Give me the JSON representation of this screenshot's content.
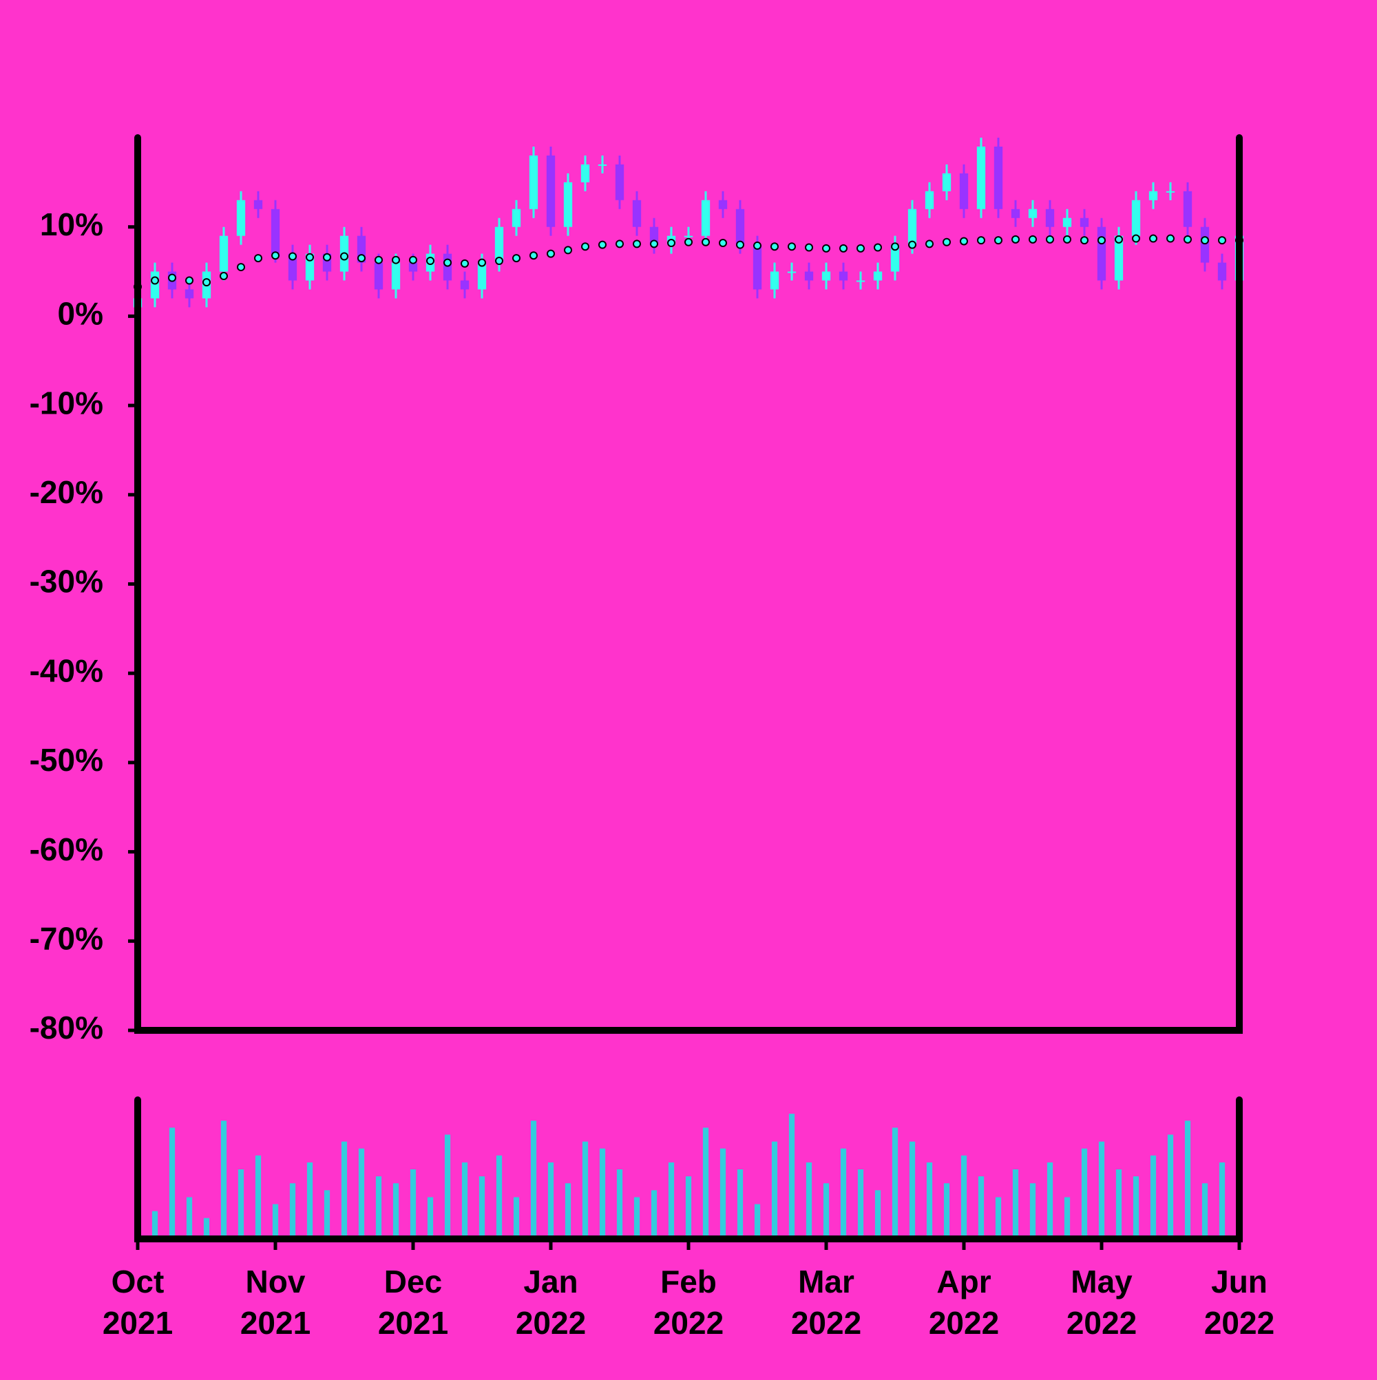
{
  "chart_data": {
    "type": "candlestick",
    "x": [
      0,
      0.125,
      0.25,
      0.375,
      0.5,
      0.625,
      0.75,
      0.875,
      1,
      1.125,
      1.25,
      1.375,
      1.5,
      1.625,
      1.75,
      1.875,
      2,
      2.125,
      2.25,
      2.375,
      2.5,
      2.625,
      2.75,
      2.875,
      3,
      3.125,
      3.25,
      3.375,
      3.5,
      3.625,
      3.75,
      3.875,
      4,
      4.125,
      4.25,
      4.375,
      4.5,
      4.625,
      4.75,
      4.875,
      5,
      5.125,
      5.25,
      5.375,
      5.5,
      5.625,
      5.75,
      5.875,
      6,
      6.125,
      6.25,
      6.375,
      6.5,
      6.625,
      6.75,
      6.875,
      7,
      7.125,
      7.25,
      7.375,
      7.5,
      7.625,
      7.75,
      7.875,
      8
    ],
    "open": [
      1,
      2,
      5,
      3,
      2,
      5,
      9,
      13,
      12,
      7,
      4,
      7,
      5,
      9,
      6,
      3,
      6,
      5,
      7,
      4,
      3,
      6,
      10,
      12,
      18,
      10,
      15,
      17,
      17,
      13,
      10,
      8,
      9,
      9,
      13,
      12,
      8,
      3,
      5,
      5,
      4,
      5,
      4,
      4,
      5,
      8,
      12,
      14,
      16,
      12,
      19,
      12,
      11,
      12,
      10,
      11,
      10,
      4,
      9,
      13,
      14,
      14,
      10,
      6,
      4
    ],
    "high": [
      3,
      6,
      6,
      4,
      6,
      10,
      14,
      14,
      13,
      8,
      8,
      8,
      10,
      10,
      7,
      7,
      7,
      8,
      8,
      5,
      7,
      11,
      13,
      19,
      19,
      16,
      18,
      18,
      18,
      14,
      11,
      10,
      10,
      14,
      14,
      13,
      9,
      6,
      6,
      6,
      6,
      6,
      5,
      6,
      9,
      13,
      15,
      17,
      17,
      20,
      20,
      13,
      13,
      13,
      12,
      12,
      11,
      10,
      14,
      15,
      15,
      15,
      11,
      7,
      10
    ],
    "low": [
      0,
      1,
      2,
      1,
      1,
      4,
      8,
      11,
      6,
      3,
      3,
      4,
      4,
      5,
      2,
      2,
      4,
      4,
      3,
      2,
      2,
      5,
      9,
      11,
      9,
      9,
      14,
      16,
      12,
      9,
      7,
      7,
      8,
      8,
      11,
      7,
      2,
      2,
      4,
      3,
      3,
      3,
      3,
      3,
      4,
      7,
      11,
      13,
      11,
      11,
      11,
      10,
      10,
      9,
      9,
      9,
      3,
      3,
      8,
      12,
      13,
      9,
      5,
      3,
      3
    ],
    "close": [
      2,
      5,
      3,
      2,
      5,
      9,
      13,
      12,
      7,
      4,
      7,
      5,
      9,
      6,
      3,
      6,
      5,
      7,
      4,
      3,
      6,
      10,
      12,
      18,
      10,
      15,
      17,
      17,
      13,
      10,
      8,
      9,
      9,
      13,
      12,
      8,
      3,
      5,
      5,
      4,
      5,
      4,
      4,
      5,
      8,
      12,
      14,
      16,
      12,
      19,
      12,
      11,
      12,
      10,
      11,
      10,
      4,
      9,
      13,
      14,
      14,
      10,
      6,
      4,
      9
    ],
    "up_color": "#33ffee",
    "down_color": "#9933ff",
    "moving_average": {
      "color": "#33ffee",
      "values": [
        3.3,
        4.0,
        4.3,
        4.0,
        3.8,
        4.5,
        5.5,
        6.5,
        6.8,
        6.7,
        6.6,
        6.6,
        6.7,
        6.5,
        6.3,
        6.3,
        6.3,
        6.2,
        6.0,
        5.9,
        6.0,
        6.2,
        6.5,
        6.8,
        7.0,
        7.4,
        7.8,
        8.0,
        8.1,
        8.1,
        8.1,
        8.2,
        8.3,
        8.3,
        8.2,
        8.0,
        7.9,
        7.8,
        7.8,
        7.7,
        7.6,
        7.6,
        7.6,
        7.7,
        7.8,
        8.0,
        8.1,
        8.3,
        8.4,
        8.5,
        8.5,
        8.6,
        8.6,
        8.6,
        8.6,
        8.5,
        8.5,
        8.6,
        8.7,
        8.7,
        8.7,
        8.6,
        8.5,
        8.5,
        8.5
      ]
    },
    "volume": {
      "color": "#33ccdd",
      "ylim": [
        0,
        100
      ],
      "values": [
        45,
        20,
        80,
        30,
        15,
        85,
        50,
        60,
        25,
        40,
        55,
        35,
        70,
        65,
        45,
        40,
        50,
        30,
        75,
        55,
        45,
        60,
        30,
        85,
        55,
        40,
        70,
        65,
        50,
        30,
        35,
        55,
        45,
        80,
        65,
        50,
        25,
        70,
        90,
        55,
        40,
        65,
        50,
        35,
        80,
        70,
        55,
        40,
        60,
        45,
        30,
        50,
        40,
        55,
        30,
        65,
        70,
        50,
        45,
        60,
        75,
        85,
        40,
        55,
        60
      ]
    },
    "xlim": [
      0,
      8
    ],
    "xticks": [
      {
        "value": 0,
        "label": "Oct 2021"
      },
      {
        "value": 1,
        "label": "Nov 2021"
      },
      {
        "value": 2,
        "label": "Dec 2021"
      },
      {
        "value": 3,
        "label": "Jan 2022"
      },
      {
        "value": 4,
        "label": "Feb 2022"
      },
      {
        "value": 5,
        "label": "Mar 2022"
      },
      {
        "value": 6,
        "label": "Apr 2022"
      },
      {
        "value": 7,
        "label": "May 2022"
      },
      {
        "value": 8,
        "label": "Jun 2022"
      }
    ],
    "ylim": [
      -80,
      20
    ],
    "yticks": [
      {
        "value": -80,
        "label": "-80%"
      },
      {
        "value": -70,
        "label": "-70%"
      },
      {
        "value": -60,
        "label": "-60%"
      },
      {
        "value": -50,
        "label": "-50%"
      },
      {
        "value": -40,
        "label": "-40%"
      },
      {
        "value": -30,
        "label": "-30%"
      },
      {
        "value": -20,
        "label": "-20%"
      },
      {
        "value": -10,
        "label": "-10%"
      },
      {
        "value": 0,
        "label": "0%"
      },
      {
        "value": 10,
        "label": "10%"
      }
    ]
  }
}
